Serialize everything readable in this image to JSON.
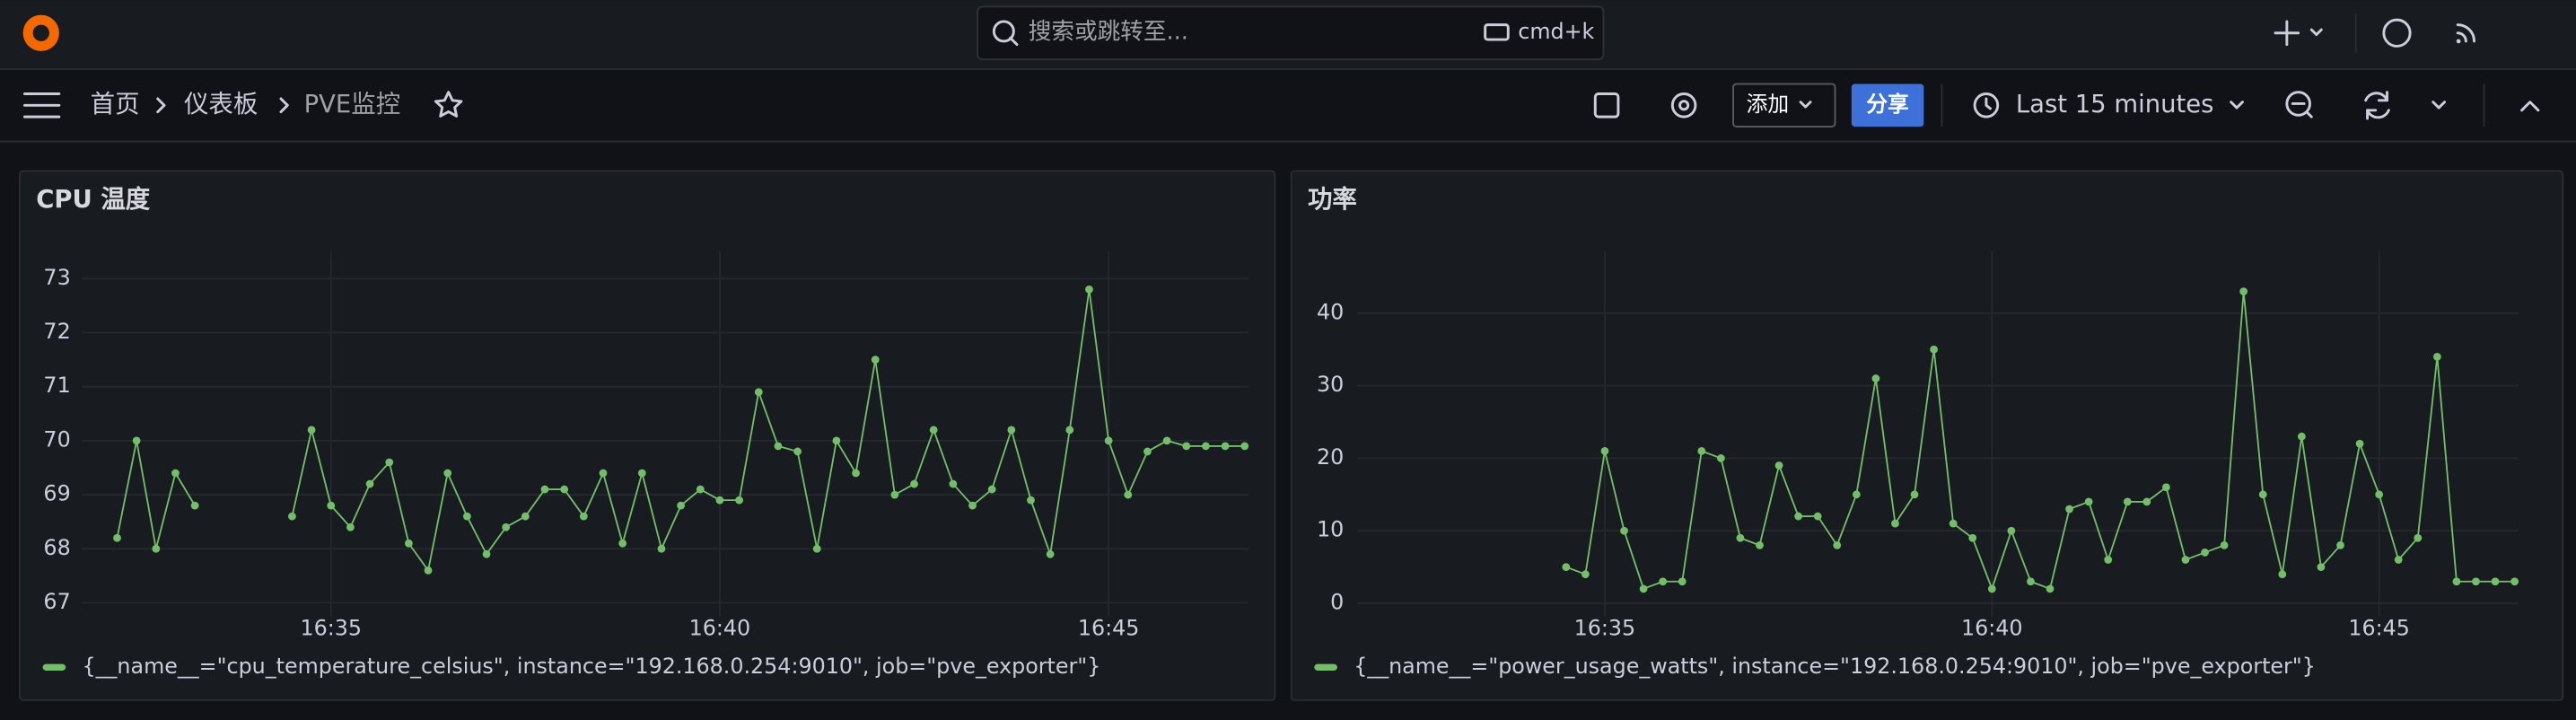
{
  "topbar": {
    "search_placeholder": "搜索或跳转至...",
    "shortcut": "cmd+k"
  },
  "breadcrumb": [
    "首页",
    "仪表板",
    "PVE监控"
  ],
  "toolbar": {
    "add": "添加",
    "share": "分享",
    "time_range": "Last 15 minutes"
  },
  "chart_data": [
    {
      "type": "line",
      "title": "CPU 温度",
      "x": [
        992.25,
        992.5,
        992.75,
        993,
        993.25,
        993.5,
        993.75,
        994,
        994.25,
        994.5,
        994.75,
        995,
        995.25,
        995.5,
        995.75,
        996,
        996.25,
        996.5,
        996.75,
        997,
        997.25,
        997.5,
        997.75,
        998,
        998.25,
        998.5,
        998.75,
        999,
        999.25,
        999.5,
        999.75,
        1000,
        1000.25,
        1000.5,
        1000.75,
        1001,
        1001.25,
        1001.5,
        1001.75,
        1002,
        1002.25,
        1002.5,
        1002.75,
        1003,
        1003.25,
        1003.5,
        1003.75,
        1004,
        1004.25,
        1004.5,
        1004.75,
        1005,
        1005.25,
        1005.5,
        1005.75,
        1006,
        1006.25,
        1006.5,
        1006.75
      ],
      "series": [
        {
          "name": "{__name__=\"cpu_temperature_celsius\", instance=\"192.168.0.254:9010\", job=\"pve_exporter\"}",
          "color": "#73bf69",
          "values": [
            68.2,
            70.0,
            68.0,
            69.4,
            68.8,
            null,
            null,
            null,
            null,
            68.6,
            70.2,
            68.8,
            68.4,
            69.2,
            69.6,
            68.1,
            67.6,
            69.4,
            68.6,
            67.9,
            68.4,
            68.6,
            69.1,
            69.1,
            68.6,
            69.4,
            68.1,
            69.4,
            68.0,
            68.8,
            69.1,
            68.9,
            68.9,
            70.9,
            69.9,
            69.8,
            68.0,
            70.0,
            69.4,
            71.5,
            69.0,
            69.2,
            70.2,
            69.2,
            68.8,
            69.1,
            70.2,
            68.9,
            67.9,
            70.2,
            72.8,
            70.0,
            69.0,
            69.8,
            70.0,
            69.9,
            69.9,
            69.9,
            69.9
          ]
        }
      ],
      "xlim": [
        991.8,
        1006.8
      ],
      "xticks": [
        {
          "value": 995,
          "label": "16:35"
        },
        {
          "value": 1000,
          "label": "16:40"
        },
        {
          "value": 1005,
          "label": "16:45"
        }
      ],
      "ylim": [
        66.75,
        73.5
      ],
      "yticks": [
        67,
        68,
        69,
        70,
        71,
        72,
        73
      ],
      "grid": true,
      "legend": "bottom-left"
    },
    {
      "type": "line",
      "title": "功率",
      "x": [
        994.5,
        994.75,
        995,
        995.25,
        995.5,
        995.75,
        996,
        996.25,
        996.5,
        996.75,
        997,
        997.25,
        997.5,
        997.75,
        998,
        998.25,
        998.5,
        998.75,
        999,
        999.25,
        999.5,
        999.75,
        1000,
        1000.25,
        1000.5,
        1000.75,
        1001,
        1001.25,
        1001.5,
        1001.75,
        1002,
        1002.25,
        1002.5,
        1002.75,
        1003,
        1003.25,
        1003.5,
        1003.75,
        1004,
        1004.25,
        1004.5,
        1004.75,
        1005,
        1005.25,
        1005.5,
        1005.75,
        1006,
        1006.25,
        1006.5,
        1006.75
      ],
      "series": [
        {
          "name": "{__name__=\"power_usage_watts\", instance=\"192.168.0.254:9010\", job=\"pve_exporter\"}",
          "color": "#73bf69",
          "values": [
            5,
            4,
            21,
            10,
            2,
            3,
            3,
            21,
            20,
            9,
            8,
            19,
            12,
            12,
            8,
            15,
            31,
            11,
            15,
            35,
            11,
            9,
            2,
            10,
            3,
            2,
            13,
            14,
            6,
            14,
            14,
            16,
            6,
            7,
            8,
            43,
            15,
            4,
            23,
            5,
            8,
            22,
            15,
            6,
            9,
            34,
            3,
            3,
            3,
            3
          ]
        }
      ],
      "xlim": [
        991.8,
        1006.8
      ],
      "xticks": [
        {
          "value": 995,
          "label": "16:35"
        },
        {
          "value": 1000,
          "label": "16:40"
        },
        {
          "value": 1005,
          "label": "16:45"
        }
      ],
      "ylim": [
        -1.8,
        48.5
      ],
      "yticks": [
        0,
        10,
        20,
        30,
        40
      ],
      "grid": true,
      "legend": "bottom-left"
    }
  ]
}
